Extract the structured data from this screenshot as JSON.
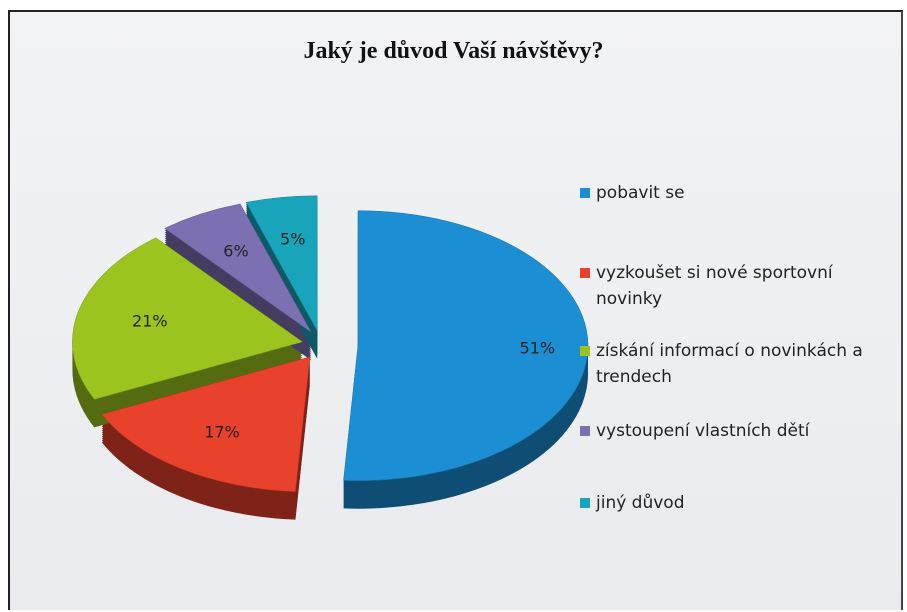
{
  "chart_data": {
    "type": "pie",
    "title": "Jaký je důvod Vaší návštěvy?",
    "categories": [
      "pobavit se",
      "vyzkoušet si nové sportovní novinky",
      "získání informací o novinkách a trendech",
      "vystoupení vlastních dětí",
      "jiný důvod"
    ],
    "values": [
      51,
      17,
      21,
      6,
      5
    ],
    "value_labels": [
      "51%",
      "17%",
      "21%",
      "6%",
      "5%"
    ],
    "colors": [
      "#1c8fd4",
      "#e8412c",
      "#9cc41e",
      "#7c70b2",
      "#18a5bb"
    ],
    "legend": "right"
  }
}
